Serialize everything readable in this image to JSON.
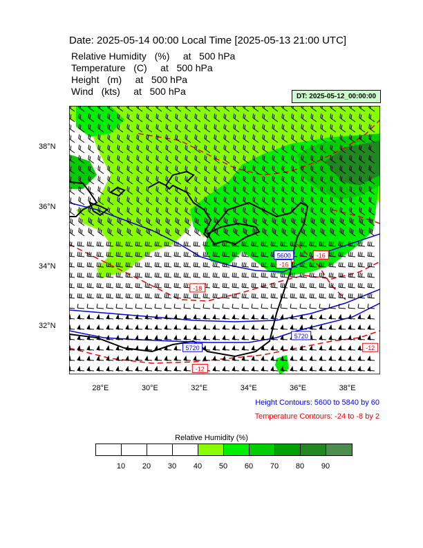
{
  "title": "Date: 2025-05-14  00:00 Local Time [2025-05-13  21:00 UTC]",
  "fields": [
    "Relative Humidity   (%)     at   500 hPa",
    "Temperature   (C)     at   500 hPa",
    "Height   (m)     at   500 hPa",
    "Wind   (kts)     at   500 hPa"
  ],
  "dt_label": "DT: 2025-05-12_00:00:00",
  "map": {
    "lon_range": [
      26.7,
      39.3
    ],
    "lat_range": [
      30.4,
      39.4
    ],
    "x_ticks": [
      "28°E",
      "30°E",
      "32°E",
      "34°E",
      "36°E",
      "38°E"
    ],
    "y_ticks": [
      "38°N",
      "36°N",
      "34°N",
      "32°N"
    ],
    "contour_labels": [
      {
        "text": "-18",
        "color": "red",
        "lon": 31.9,
        "lat": 33.3
      },
      {
        "text": "-16",
        "color": "red",
        "lon": 36.9,
        "lat": 34.4
      },
      {
        "text": "-16",
        "color": "red",
        "lon": 35.5,
        "lat": 34.3
      },
      {
        "text": "-16",
        "color": "red",
        "lon": 35.4,
        "lat": 34.1
      },
      {
        "text": "-12",
        "color": "red",
        "lon": 38.9,
        "lat": 31.3
      },
      {
        "text": "-12",
        "color": "red",
        "lon": 32.0,
        "lat": 30.6
      },
      {
        "text": "5720",
        "color": "blue",
        "lon": 36.1,
        "lat": 31.7
      },
      {
        "text": "5720",
        "color": "blue",
        "lon": 31.7,
        "lat": 31.3
      },
      {
        "text": "5600",
        "color": "blue",
        "lon": 35.4,
        "lat": 34.4
      }
    ]
  },
  "height_note": "Height Contours: 5600 to 5840 by 60",
  "temp_note": "Temperature Contours: -24 to -8 by 2",
  "colorbar": {
    "title": "Relative Humidity  (%)",
    "labels": [
      "10",
      "20",
      "30",
      "40",
      "50",
      "60",
      "70",
      "80",
      "90"
    ],
    "colors": [
      "#ffffff",
      "#ffffff",
      "#ffffff",
      "#ffffff",
      "#88ff00",
      "#00ee00",
      "#00cc00",
      "#00a000",
      "#208820",
      "#4c8c4c"
    ]
  }
}
